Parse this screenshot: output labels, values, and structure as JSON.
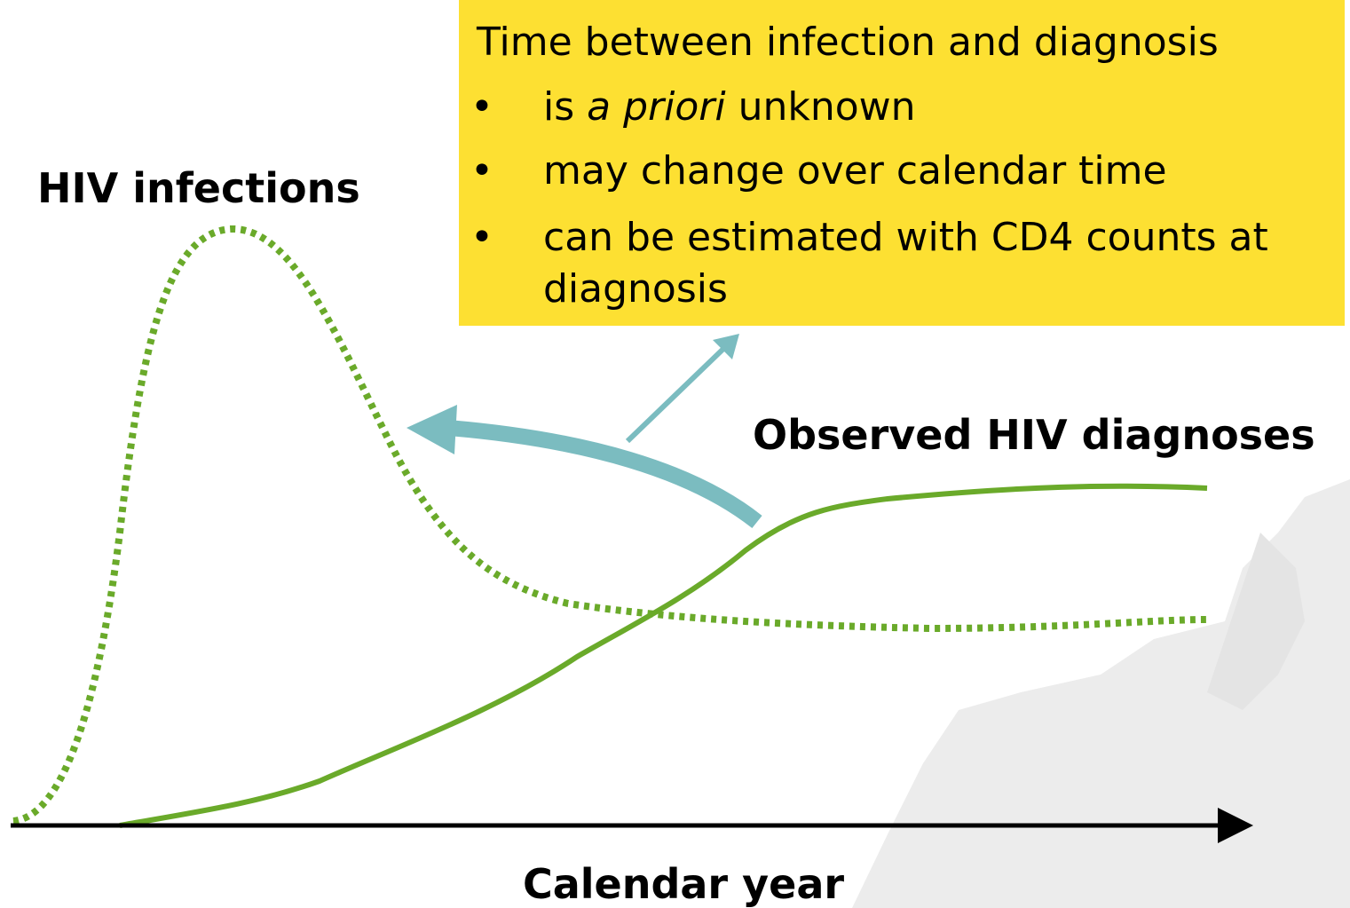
{
  "box": {
    "title": "Time between infection and diagnosis",
    "bullets": [
      {
        "before": "is",
        "emphasis": "a priori",
        "after": "unknown"
      },
      {
        "text": "may change over calendar time"
      },
      {
        "line1": "can be estimated with CD4 counts at",
        "line2": "diagnosis"
      }
    ]
  },
  "labels": {
    "infections": "HIV infections",
    "diagnoses": "Observed HIV diagnoses",
    "x_axis": "Calendar year"
  }
}
